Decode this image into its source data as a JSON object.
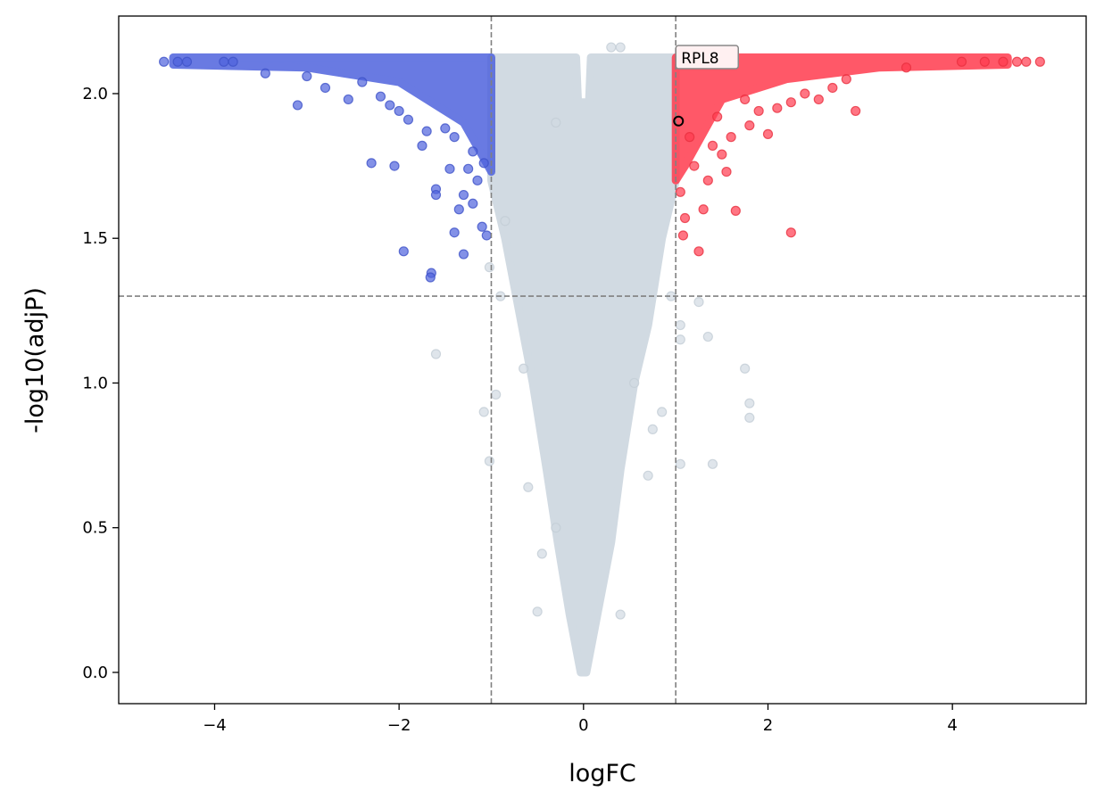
{
  "chart_data": {
    "type": "scatter",
    "title": "",
    "xlabel": "logFC",
    "ylabel": "-log10(adjP)",
    "xlim": [
      -5.04,
      5.45
    ],
    "ylim": [
      -0.108,
      2.268
    ],
    "xticks": [
      -4,
      -2,
      0,
      2,
      4
    ],
    "xtick_labels": [
      "−4",
      "−2",
      "0",
      "2",
      "4"
    ],
    "yticks": [
      0.0,
      0.5,
      1.0,
      1.5,
      2.0
    ],
    "ytick_labels": [
      "0.0",
      "0.5",
      "1.0",
      "1.5",
      "2.0"
    ],
    "grid": false,
    "thresholds": {
      "logFC": [
        -1,
        1
      ],
      "neg_log10_adjP": 1.3
    },
    "colors": {
      "down": "#4f63dd",
      "up": "#ff3b4e",
      "ns": "#d1dae2",
      "threshold": "#808080"
    },
    "dense_regions": [
      {
        "group": "ns",
        "polygon": [
          [
            -1,
            2.125
          ],
          [
            -0.08,
            2.125
          ],
          [
            -0.06,
            1.97
          ],
          [
            0.06,
            1.97
          ],
          [
            0.08,
            2.125
          ],
          [
            1,
            2.125
          ],
          [
            1,
            1.7
          ],
          [
            0.85,
            1.5
          ],
          [
            0.7,
            1.2
          ],
          [
            0.55,
            1.0
          ],
          [
            0.4,
            0.7
          ],
          [
            0.3,
            0.45
          ],
          [
            0.15,
            0.2
          ],
          [
            0.03,
            0.0
          ],
          [
            -0.03,
            0.0
          ],
          [
            -0.15,
            0.2
          ],
          [
            -0.28,
            0.45
          ],
          [
            -0.4,
            0.7
          ],
          [
            -0.55,
            1.0
          ],
          [
            -0.7,
            1.25
          ],
          [
            -0.85,
            1.5
          ],
          [
            -1,
            1.7
          ]
        ]
      },
      {
        "group": "down",
        "polygon": [
          [
            -4.45,
            2.125
          ],
          [
            -1,
            2.125
          ],
          [
            -1,
            1.73
          ],
          [
            -1.3,
            1.9
          ],
          [
            -2.0,
            2.04
          ],
          [
            -3.0,
            2.09
          ],
          [
            -4.45,
            2.1
          ]
        ]
      },
      {
        "group": "up",
        "polygon": [
          [
            1,
            2.125
          ],
          [
            4.6,
            2.125
          ],
          [
            4.6,
            2.1
          ],
          [
            3.2,
            2.09
          ],
          [
            2.2,
            2.05
          ],
          [
            1.5,
            1.98
          ],
          [
            1.1,
            1.75
          ],
          [
            1,
            1.7
          ]
        ]
      }
    ],
    "series": [
      {
        "name": "down",
        "points": [
          [
            -4.55,
            2.11
          ],
          [
            -4.4,
            2.11
          ],
          [
            -4.3,
            2.11
          ],
          [
            -3.9,
            2.11
          ],
          [
            -3.8,
            2.11
          ],
          [
            -3.45,
            2.07
          ],
          [
            -3.1,
            1.96
          ],
          [
            -2.8,
            2.02
          ],
          [
            -2.55,
            1.98
          ],
          [
            -2.3,
            1.76
          ],
          [
            -2.05,
            1.75
          ],
          [
            -2.1,
            1.96
          ],
          [
            -1.9,
            1.91
          ],
          [
            -1.75,
            1.82
          ],
          [
            -1.6,
            1.67
          ],
          [
            -1.6,
            1.65
          ],
          [
            -1.65,
            1.38
          ],
          [
            -1.66,
            1.365
          ],
          [
            -1.95,
            1.455
          ],
          [
            -1.4,
            1.52
          ],
          [
            -1.3,
            1.445
          ],
          [
            -1.45,
            1.74
          ],
          [
            -1.2,
            1.62
          ],
          [
            -1.1,
            1.54
          ],
          [
            -1.3,
            1.65
          ],
          [
            -1.05,
            1.51
          ],
          [
            -1.4,
            1.85
          ],
          [
            -1.2,
            1.8
          ],
          [
            -1.5,
            1.88
          ],
          [
            -1.7,
            1.87
          ],
          [
            -2.2,
            1.99
          ],
          [
            -2.4,
            2.04
          ],
          [
            -3.0,
            2.06
          ],
          [
            -2.0,
            1.94
          ],
          [
            -1.15,
            1.7
          ],
          [
            -1.08,
            1.76
          ],
          [
            -1.25,
            1.74
          ],
          [
            -1.35,
            1.6
          ]
        ]
      },
      {
        "name": "up",
        "points": [
          [
            4.95,
            2.11
          ],
          [
            4.8,
            2.11
          ],
          [
            4.7,
            2.11
          ],
          [
            4.55,
            2.11
          ],
          [
            4.35,
            2.11
          ],
          [
            4.1,
            2.11
          ],
          [
            3.5,
            2.09
          ],
          [
            2.95,
            1.94
          ],
          [
            2.85,
            2.05
          ],
          [
            2.7,
            2.02
          ],
          [
            2.55,
            1.98
          ],
          [
            2.25,
            1.52
          ],
          [
            2.25,
            1.97
          ],
          [
            2.0,
            1.86
          ],
          [
            1.9,
            1.94
          ],
          [
            1.75,
            1.98
          ],
          [
            1.65,
            1.595
          ],
          [
            1.55,
            1.73
          ],
          [
            1.5,
            1.79
          ],
          [
            1.4,
            1.82
          ],
          [
            1.3,
            1.6
          ],
          [
            1.25,
            1.455
          ],
          [
            1.1,
            1.57
          ],
          [
            1.08,
            1.51
          ],
          [
            1.05,
            1.66
          ],
          [
            1.2,
            1.75
          ],
          [
            1.35,
            1.7
          ],
          [
            1.6,
            1.85
          ],
          [
            1.8,
            1.89
          ],
          [
            2.1,
            1.95
          ],
          [
            1.15,
            1.85
          ],
          [
            1.45,
            1.92
          ],
          [
            2.4,
            2.0
          ]
        ]
      },
      {
        "name": "ns",
        "points": [
          [
            -1.6,
            1.1
          ],
          [
            -1.08,
            0.9
          ],
          [
            -1.02,
            0.73
          ],
          [
            -0.95,
            0.96
          ],
          [
            -0.9,
            1.3
          ],
          [
            -1.02,
            1.4
          ],
          [
            -0.85,
            1.56
          ],
          [
            -0.5,
            0.21
          ],
          [
            -0.6,
            0.64
          ],
          [
            -0.45,
            0.41
          ],
          [
            -0.3,
            0.5
          ],
          [
            0.4,
            0.2
          ],
          [
            0.75,
            0.84
          ],
          [
            0.7,
            0.68
          ],
          [
            0.85,
            0.9
          ],
          [
            1.05,
            0.72
          ],
          [
            1.4,
            0.72
          ],
          [
            1.8,
            0.93
          ],
          [
            1.8,
            0.88
          ],
          [
            1.75,
            1.05
          ],
          [
            1.35,
            1.16
          ],
          [
            1.05,
            1.2
          ],
          [
            1.05,
            1.15
          ],
          [
            1.25,
            1.28
          ],
          [
            0.95,
            1.3
          ],
          [
            0.4,
            2.16
          ],
          [
            0.3,
            2.16
          ],
          [
            -0.3,
            1.9
          ],
          [
            0.55,
            1.0
          ],
          [
            -0.65,
            1.05
          ]
        ]
      }
    ],
    "annotations": [
      {
        "label": "RPL8",
        "x": 1.03,
        "y": 1.905
      }
    ]
  }
}
